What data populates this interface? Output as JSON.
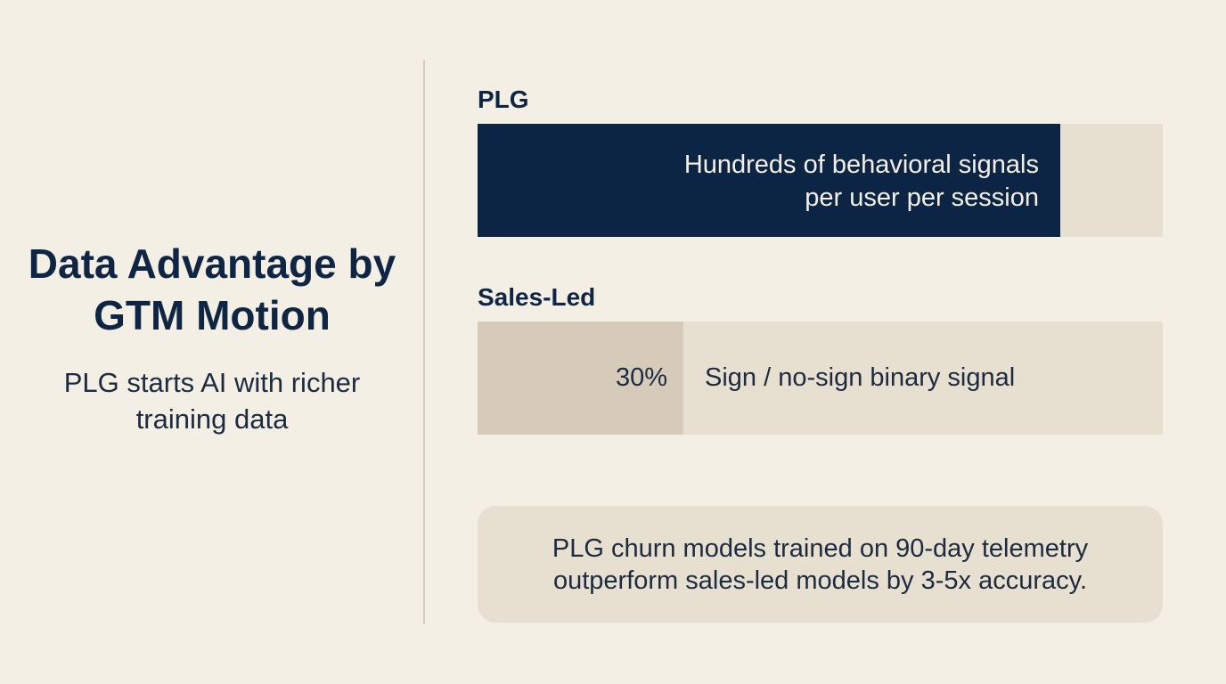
{
  "page": {
    "title": "Data Advantage by GTM Motion",
    "subtitle": "PLG starts AI with richer training data"
  },
  "chart_data": {
    "type": "bar",
    "orientation": "horizontal",
    "categories": [
      "PLG",
      "Sales-Led"
    ],
    "values": [
      85,
      30
    ],
    "value_labels": [
      "",
      "30%"
    ],
    "descriptions": [
      "Hundreds of behavioral signals per user per session",
      "Sign / no-sign binary signal"
    ],
    "xlim": [
      0,
      100
    ],
    "colors": [
      "#0D2545",
      "#D6CBB9"
    ],
    "track_color": "#E7DFCF"
  },
  "note": {
    "text": "PLG churn models trained on 90-day telemetry outperform sales-led models by 3-5x accuracy."
  }
}
